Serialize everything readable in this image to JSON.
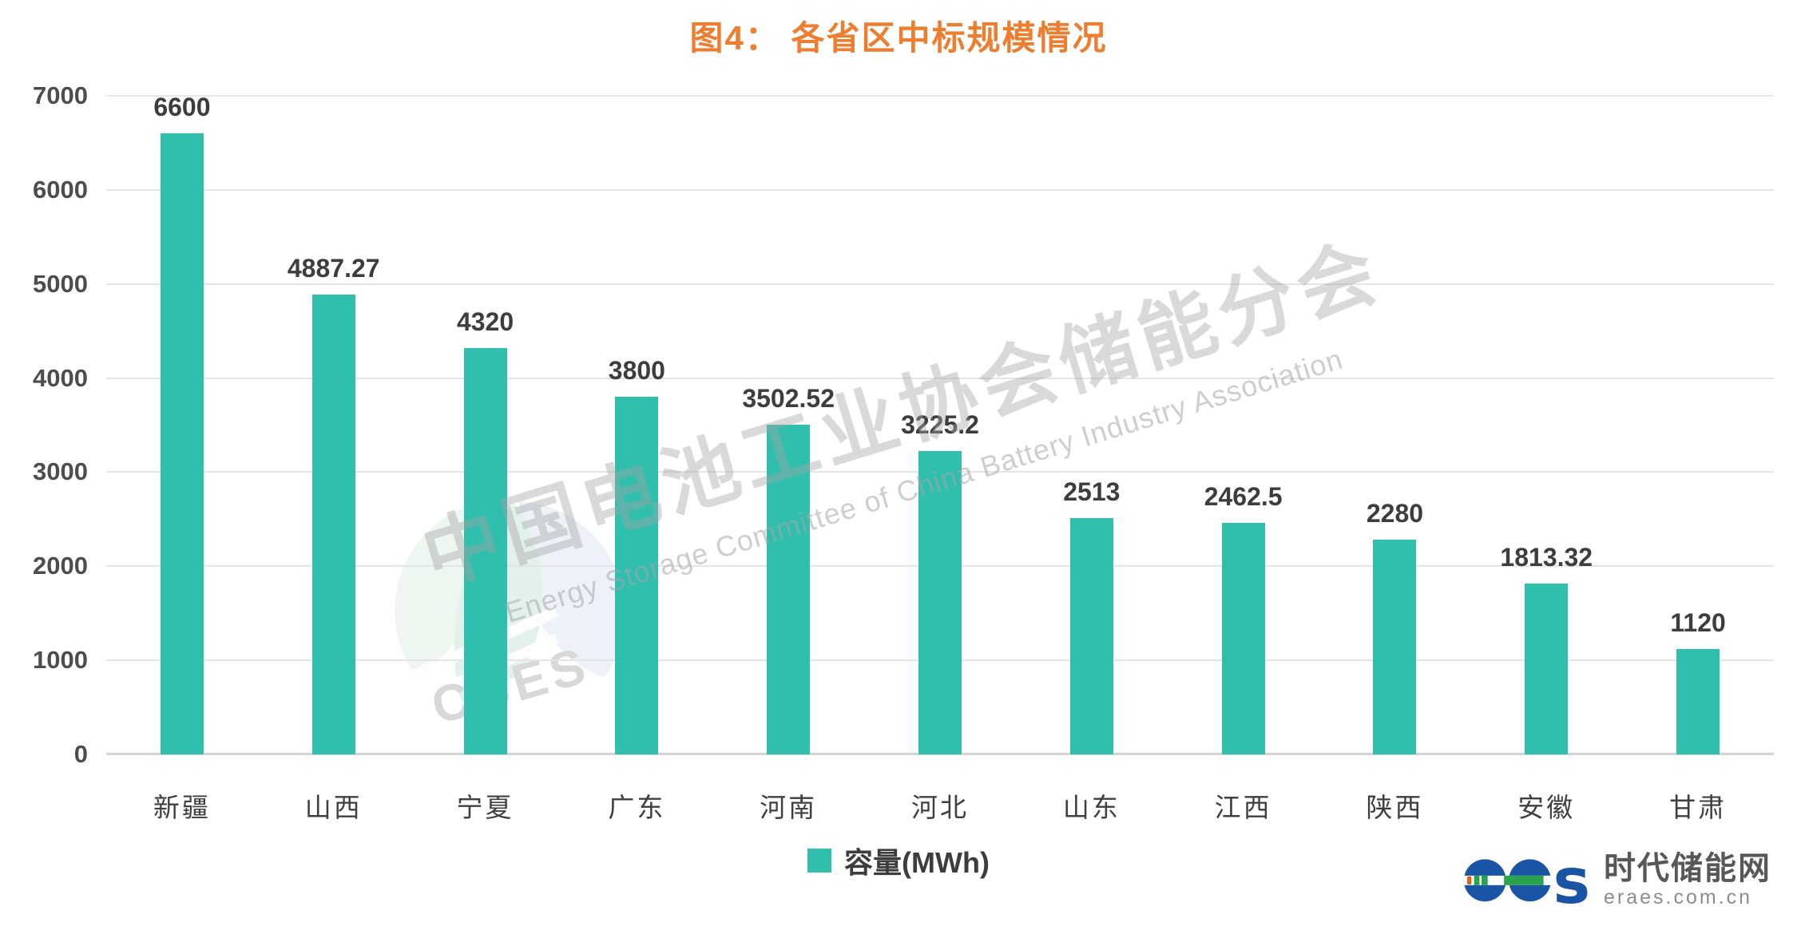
{
  "title": {
    "text": "图4： 各省区中标规模情况",
    "color": "#ed7d2f"
  },
  "chart_data": {
    "type": "bar",
    "title": "图4： 各省区中标规模情况",
    "categories": [
      "新疆",
      "山西",
      "宁夏",
      "广东",
      "河南",
      "河北",
      "山东",
      "江西",
      "陕西",
      "安徽",
      "甘肃"
    ],
    "series": [
      {
        "name": "容量(MWh)",
        "values": [
          6600,
          4887.27,
          4320,
          3800,
          3502.52,
          3225.2,
          2513,
          2462.5,
          2280,
          1813.32,
          1120
        ]
      }
    ],
    "value_labels": [
      "6600",
      "4887.27",
      "4320",
      "3800",
      "3502.52",
      "3225.2",
      "2513",
      "2462.5",
      "2280",
      "1813.32",
      "1120"
    ],
    "xlabel": "",
    "ylabel": "",
    "ylim": [
      0,
      7000
    ],
    "y_ticks": [
      7000,
      6000,
      5000,
      4000,
      3000,
      2000,
      1000,
      0
    ],
    "grid": true,
    "legend_position": "bottom",
    "bar_color": "#30bead"
  },
  "legend": {
    "label": "容量(MWh)",
    "swatch_color": "#30bead"
  },
  "watermark": {
    "chinese": "中国电池工业协会储能分会",
    "english": "Energy Storage Committee of China Battery Industry Association",
    "logo_text": "CBES"
  },
  "brand": {
    "logo_text": "ees",
    "site_name": "时代储能网",
    "site_url": "eraes.com.cn"
  },
  "colors": {
    "bar": "#30bead",
    "title": "#ed7d2f",
    "axis_text": "#4d4d4d",
    "gridline": "#e4e4e4",
    "brand_blue": "#1a55a5",
    "brand_green": "#2aa34f",
    "brand_orange": "#e8600d"
  }
}
